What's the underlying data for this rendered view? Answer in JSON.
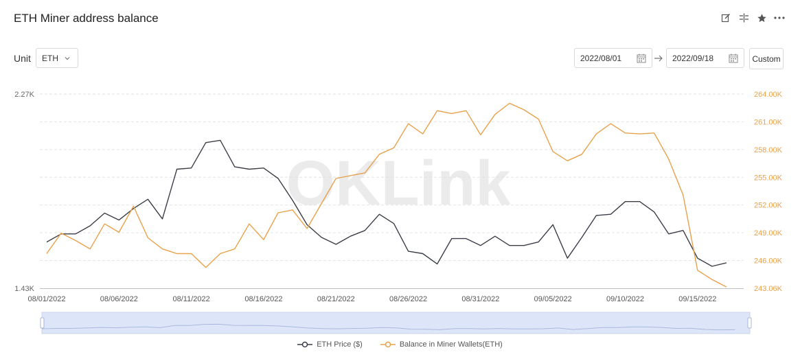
{
  "header": {
    "title": "ETH Miner address balance"
  },
  "toolbar": {
    "icons": [
      "edit-icon",
      "split-icon",
      "star-icon",
      "more-icon"
    ]
  },
  "controls": {
    "unit_label": "Unit",
    "unit_value": "ETH",
    "date_from": "2022/08/01",
    "date_to": "2022/09/18",
    "custom_label": "Custom"
  },
  "watermark": "OKLink",
  "colors": {
    "price": "#3a3d47",
    "balance": "#e8a14a",
    "slider": "#c9d6f2",
    "grid": "#e2e2e2"
  },
  "chart_data": {
    "type": "line",
    "x": [
      "08/01/2022",
      "08/02/2022",
      "08/03/2022",
      "08/04/2022",
      "08/05/2022",
      "08/06/2022",
      "08/07/2022",
      "08/08/2022",
      "08/09/2022",
      "08/10/2022",
      "08/11/2022",
      "08/12/2022",
      "08/13/2022",
      "08/14/2022",
      "08/15/2022",
      "08/16/2022",
      "08/17/2022",
      "08/18/2022",
      "08/19/2022",
      "08/20/2022",
      "08/21/2022",
      "08/22/2022",
      "08/23/2022",
      "08/24/2022",
      "08/25/2022",
      "08/26/2022",
      "08/27/2022",
      "08/28/2022",
      "08/29/2022",
      "08/30/2022",
      "08/31/2022",
      "09/01/2022",
      "09/02/2022",
      "09/03/2022",
      "09/04/2022",
      "09/05/2022",
      "09/06/2022",
      "09/07/2022",
      "09/08/2022",
      "09/09/2022",
      "09/10/2022",
      "09/11/2022",
      "09/12/2022",
      "09/13/2022",
      "09/14/2022",
      "09/15/2022",
      "09/16/2022",
      "09/17/2022",
      "09/18/2022"
    ],
    "x_tick_labels": [
      "08/01/2022",
      "08/06/2022",
      "08/11/2022",
      "08/16/2022",
      "08/21/2022",
      "08/26/2022",
      "08/31/2022",
      "09/05/2022",
      "09/10/2022",
      "09/15/2022"
    ],
    "series": [
      {
        "name": "ETH Price ($)",
        "axis": "left",
        "values": [
          1630,
          1665,
          1665,
          1700,
          1755,
          1725,
          1775,
          1815,
          1730,
          1945,
          1950,
          2060,
          2070,
          1955,
          1945,
          1950,
          1905,
          1810,
          1705,
          1650,
          1620,
          1655,
          1680,
          1750,
          1710,
          1590,
          1580,
          1535,
          1645,
          1645,
          1615,
          1655,
          1615,
          1615,
          1630,
          1705,
          1560,
          1650,
          1745,
          1750,
          1805,
          1805,
          1760,
          1665,
          1680,
          1560,
          1525,
          1540,
          null
        ],
        "color": "#3a3d47"
      },
      {
        "name": "Balance in Miner Wallets(ETH)",
        "axis": "right",
        "values": [
          246.8,
          249.0,
          248.2,
          247.3,
          250.0,
          249.1,
          251.9,
          248.5,
          247.3,
          246.8,
          246.8,
          245.3,
          246.8,
          247.3,
          250.0,
          248.3,
          251.2,
          251.5,
          249.5,
          252.2,
          254.9,
          255.2,
          255.5,
          257.5,
          258.2,
          260.8,
          259.7,
          262.2,
          261.9,
          262.2,
          259.6,
          261.8,
          263.0,
          262.3,
          261.3,
          257.8,
          256.8,
          257.5,
          259.7,
          260.8,
          259.8,
          259.7,
          259.8,
          257.0,
          253.1,
          245.0,
          244.0,
          243.2,
          null
        ]
      }
    ],
    "y_left": {
      "ticks": [
        "2.27K",
        "1.43K"
      ],
      "min": 1430,
      "max": 2270
    },
    "y_right": {
      "ticks": [
        "264.00K",
        "261.00K",
        "258.00K",
        "255.00K",
        "252.00K",
        "249.00K",
        "246.00K",
        "243.06K"
      ],
      "min": 243.06,
      "max": 264.0
    },
    "grid": true,
    "legend_position": "bottom-center"
  },
  "legend": [
    {
      "label": "ETH Price ($)"
    },
    {
      "label": "Balance in Miner Wallets(ETH)"
    }
  ]
}
